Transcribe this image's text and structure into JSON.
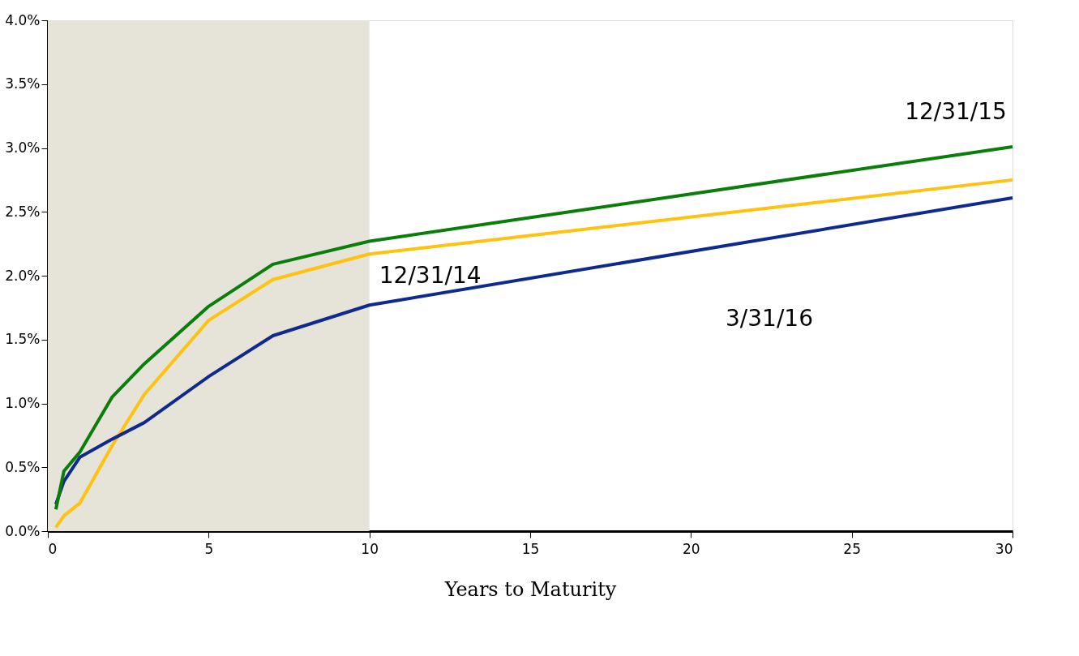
{
  "chart_data": {
    "type": "line",
    "xlabel": "Years to Maturity",
    "xlim": [
      0,
      30
    ],
    "xticks": [
      0,
      5,
      10,
      15,
      20,
      25,
      30
    ],
    "ylim": [
      0,
      4
    ],
    "yticks": [
      {
        "value": 0,
        "label": "0.0%"
      },
      {
        "value": 0.5,
        "label": "0.5%"
      },
      {
        "value": 1,
        "label": "1.0%"
      },
      {
        "value": 1.5,
        "label": "1.5%"
      },
      {
        "value": 2,
        "label": "2.0%"
      },
      {
        "value": 2.5,
        "label": "2.5%"
      },
      {
        "value": 3,
        "label": "3.0%"
      },
      {
        "value": 3.5,
        "label": "3.5%"
      },
      {
        "value": 4,
        "label": "4.0%"
      }
    ],
    "x": [
      0.25,
      0.5,
      1,
      2,
      3,
      5,
      7,
      10,
      30
    ],
    "series": [
      {
        "name": "12/31/14",
        "color": "#ffc20e",
        "values": [
          0.03,
          0.12,
          0.22,
          0.67,
          1.07,
          1.65,
          1.97,
          2.17,
          2.75
        ]
      },
      {
        "name": "3/31/16",
        "color": "#0f2a8c",
        "values": [
          0.21,
          0.39,
          0.58,
          0.72,
          0.85,
          1.21,
          1.53,
          1.77,
          2.61
        ]
      },
      {
        "name": "12/31/15",
        "color": "#0a7d0a",
        "values": [
          0.17,
          0.47,
          0.62,
          1.05,
          1.31,
          1.76,
          2.09,
          2.27,
          3.01
        ]
      }
    ],
    "bands": [
      {
        "axis": "x",
        "from": 0,
        "to": 10,
        "color": "#e6e4d8"
      }
    ],
    "grid": false,
    "legend": false,
    "marker": "none",
    "line_style": "solid"
  }
}
